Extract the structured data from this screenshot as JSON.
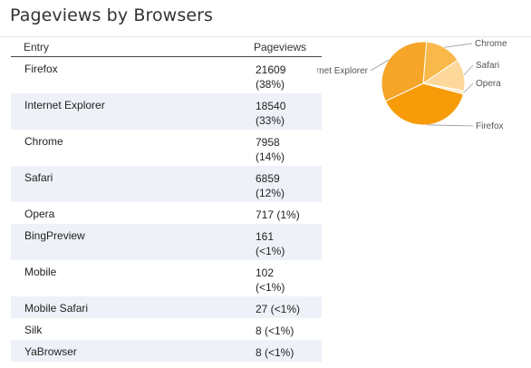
{
  "panel": {
    "title": "Pageviews by Browsers"
  },
  "table": {
    "columns": [
      "Entry",
      "Pageviews"
    ],
    "rows": [
      {
        "entry": "Firefox",
        "pageviews": "21609",
        "pct": "(38%)"
      },
      {
        "entry": "Internet Explorer",
        "pageviews": "18540",
        "pct": "(33%)"
      },
      {
        "entry": "Chrome",
        "pageviews": "7958",
        "pct": "(14%)"
      },
      {
        "entry": "Safari",
        "pageviews": "6859",
        "pct": "(12%)"
      },
      {
        "entry": "Opera",
        "pageviews": "717 (1%)",
        "pct": ""
      },
      {
        "entry": "BingPreview",
        "pageviews": "161",
        "pct": "(<1%)"
      },
      {
        "entry": "Mobile",
        "pageviews": "102",
        "pct": "(<1%)"
      },
      {
        "entry": "Mobile Safari",
        "pageviews": "27 (<1%)",
        "pct": ""
      },
      {
        "entry": "Silk",
        "pageviews": "8 (<1%)",
        "pct": ""
      },
      {
        "entry": "YaBrowser",
        "pageviews": "8 (<1%)",
        "pct": ""
      }
    ]
  },
  "chart_data": {
    "type": "pie",
    "labels": [
      "Chrome",
      "Safari",
      "Opera",
      "Firefox",
      "Internet Explorer"
    ],
    "values": [
      7958,
      6859,
      717,
      21609,
      18540
    ],
    "colors": [
      "#f8b94a",
      "#fdd89a",
      "#fdebc8",
      "#f79b08",
      "#f5a528"
    ]
  }
}
